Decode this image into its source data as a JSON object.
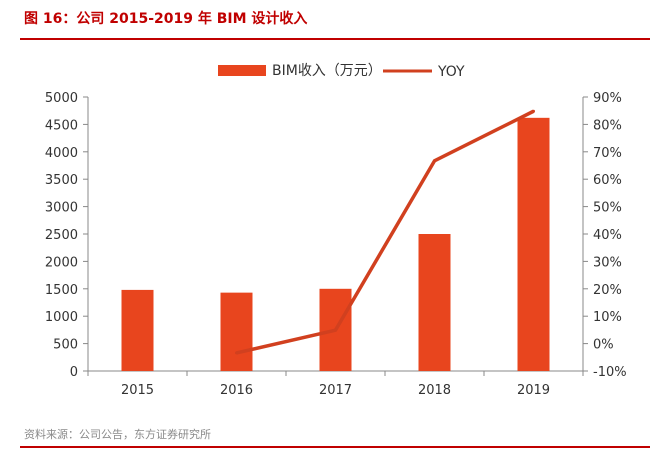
{
  "title": "图 16：公司 2015-2019 年 BIM 设计收入",
  "source": "资料来源：公司公告，东方证券研究所",
  "colors": {
    "bar": "#e8451e",
    "line": "#d1401f",
    "title": "#c00000",
    "axis": "#333333"
  },
  "chart_data": {
    "type": "bar",
    "categories": [
      "2015",
      "2016",
      "2017",
      "2018",
      "2019"
    ],
    "series": [
      {
        "name": "BIM收入（万元）",
        "type": "bar",
        "axis": "left",
        "values": [
          1480,
          1430,
          1500,
          2500,
          4620
        ]
      },
      {
        "name": "YOY",
        "type": "line",
        "axis": "right",
        "values": [
          null,
          -3.4,
          4.9,
          66.7,
          84.8
        ]
      }
    ],
    "ylim": [
      0,
      5000
    ],
    "y_ticks": [
      "0",
      "500",
      "1000",
      "1500",
      "2000",
      "2500",
      "3000",
      "3500",
      "4000",
      "4500",
      "5000"
    ],
    "y2lim": [
      -10,
      90
    ],
    "y2_ticks": [
      "-10%",
      "0%",
      "10%",
      "20%",
      "30%",
      "40%",
      "50%",
      "60%",
      "70%",
      "80%",
      "90%"
    ],
    "legend": "top-center",
    "grid": false
  }
}
